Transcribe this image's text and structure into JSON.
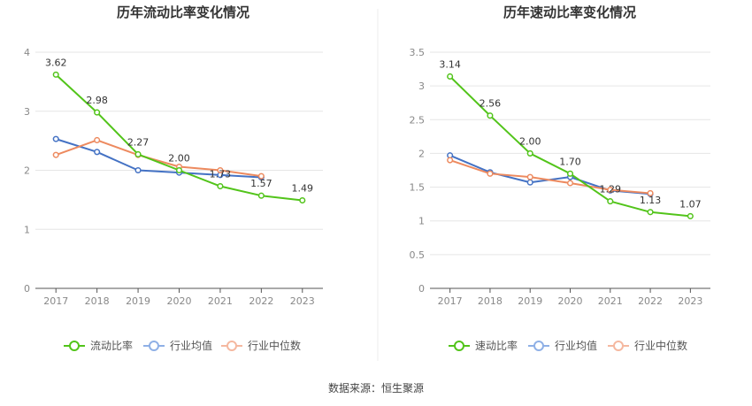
{
  "source": "数据来源：恒生聚源",
  "colors": {
    "primary": "#52c41a",
    "industry_avg": "#4472c4",
    "industry_median": "#ed8a5f",
    "legend_avg": "#8fb0e6",
    "legend_median": "#f5b8a0",
    "grid": "#e6e6e6",
    "axis": "#555555",
    "divider": "#eeeeee"
  },
  "chart_data": [
    {
      "type": "line",
      "title": "历年流动比率变化情况",
      "categories": [
        "2017",
        "2018",
        "2019",
        "2020",
        "2021",
        "2022",
        "2023"
      ],
      "ylim": [
        0,
        4
      ],
      "yticks": [
        "0",
        "1",
        "2",
        "3",
        "4"
      ],
      "grid": true,
      "legend_position": "bottom",
      "series": [
        {
          "name": "流动比率",
          "color_key": "primary",
          "values": [
            3.62,
            2.98,
            2.27,
            2.0,
            1.73,
            1.57,
            1.49
          ],
          "labels": [
            "3.62",
            "2.98",
            "2.27",
            "2.00",
            "1.73",
            "1.57",
            "1.49"
          ]
        },
        {
          "name": "行业均值",
          "color_key": "industry_avg",
          "values": [
            2.53,
            2.31,
            2.0,
            1.96,
            1.92,
            1.88,
            null
          ]
        },
        {
          "name": "行业中位数",
          "color_key": "industry_median",
          "values": [
            2.26,
            2.51,
            2.26,
            2.06,
            2.0,
            1.9,
            null
          ]
        }
      ]
    },
    {
      "type": "line",
      "title": "历年速动比率变化情况",
      "categories": [
        "2017",
        "2018",
        "2019",
        "2020",
        "2021",
        "2022",
        "2023"
      ],
      "ylim": [
        0,
        3.5
      ],
      "yticks": [
        "0",
        "0.5",
        "1",
        "1.5",
        "2",
        "2.5",
        "3",
        "3.5"
      ],
      "grid": true,
      "legend_position": "bottom",
      "series": [
        {
          "name": "速动比率",
          "color_key": "primary",
          "values": [
            3.14,
            2.56,
            2.0,
            1.7,
            1.29,
            1.13,
            1.07
          ],
          "labels": [
            "3.14",
            "2.56",
            "2.00",
            "1.70",
            "1.29",
            "1.13",
            "1.07"
          ]
        },
        {
          "name": "行业均值",
          "color_key": "industry_avg",
          "values": [
            1.97,
            1.72,
            1.57,
            1.65,
            1.45,
            1.4,
            null
          ]
        },
        {
          "name": "行业中位数",
          "color_key": "industry_median",
          "values": [
            1.9,
            1.7,
            1.65,
            1.56,
            1.46,
            1.41,
            null
          ]
        }
      ]
    }
  ]
}
